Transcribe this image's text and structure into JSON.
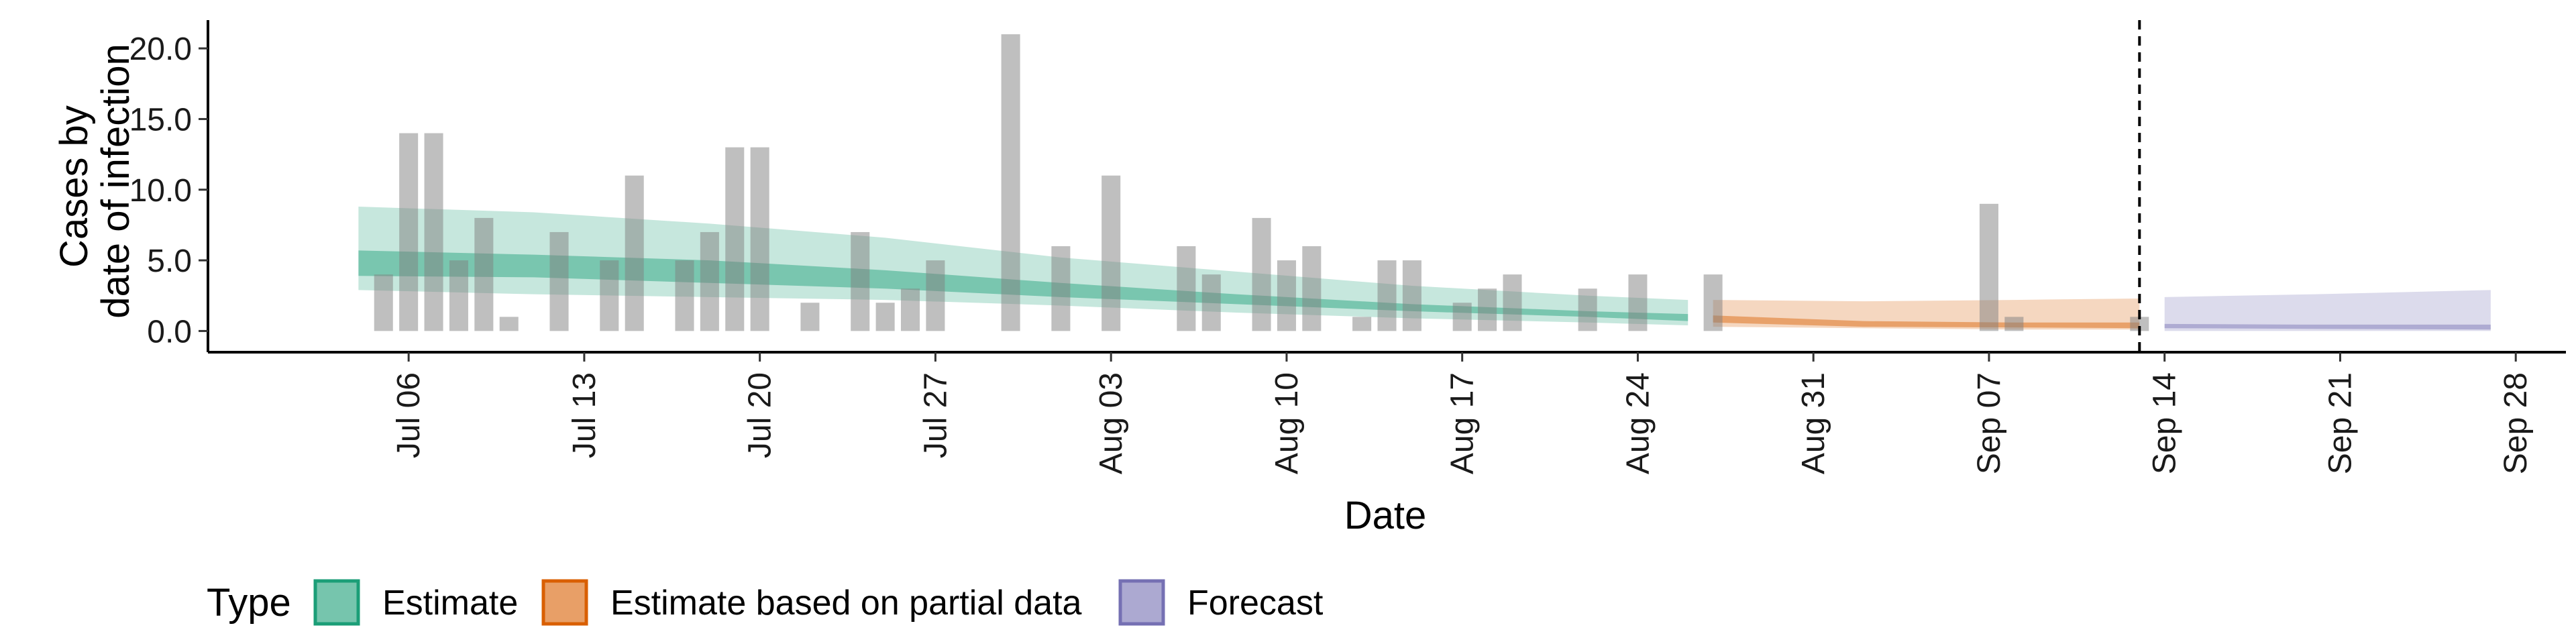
{
  "chart_data": {
    "type": "bar+area",
    "title": "",
    "xlabel": "Date",
    "ylabel_lines": [
      "Cases by",
      "date of infection"
    ],
    "ylim": [
      -1.5,
      22.0
    ],
    "yticks": [
      0,
      5,
      10,
      15,
      20
    ],
    "ytick_labels": [
      "0.0",
      "5.0",
      "10.0",
      "15.0",
      "20.0"
    ],
    "x_start": "2020-06-28",
    "x_end": "2020-09-30",
    "xticks": [
      "2020-07-06",
      "2020-07-13",
      "2020-07-20",
      "2020-07-27",
      "2020-08-03",
      "2020-08-10",
      "2020-08-17",
      "2020-08-24",
      "2020-08-31",
      "2020-09-07",
      "2020-09-14",
      "2020-09-21",
      "2020-09-28"
    ],
    "xtick_labels": [
      "Jul 06",
      "Jul 13",
      "Jul 20",
      "Jul 27",
      "Aug 03",
      "Aug 10",
      "Aug 17",
      "Aug 24",
      "Aug 31",
      "Sep 07",
      "Sep 14",
      "Sep 21",
      "Sep 28"
    ],
    "vline_date": "2020-09-13",
    "bars": {
      "dates": [
        "2020-07-05",
        "2020-07-06",
        "2020-07-07",
        "2020-07-08",
        "2020-07-09",
        "2020-07-10",
        "2020-07-11",
        "2020-07-12",
        "2020-07-13",
        "2020-07-14",
        "2020-07-15",
        "2020-07-16",
        "2020-07-17",
        "2020-07-18",
        "2020-07-19",
        "2020-07-20",
        "2020-07-21",
        "2020-07-22",
        "2020-07-23",
        "2020-07-24",
        "2020-07-25",
        "2020-07-26",
        "2020-07-27",
        "2020-07-28",
        "2020-07-29",
        "2020-07-30",
        "2020-07-31",
        "2020-08-01",
        "2020-08-02",
        "2020-08-03",
        "2020-08-04",
        "2020-08-05",
        "2020-08-06",
        "2020-08-07",
        "2020-08-08",
        "2020-08-09",
        "2020-08-10",
        "2020-08-11",
        "2020-08-12",
        "2020-08-13",
        "2020-08-14",
        "2020-08-15",
        "2020-08-16",
        "2020-08-17",
        "2020-08-18",
        "2020-08-19",
        "2020-08-20",
        "2020-08-21",
        "2020-08-22",
        "2020-08-23",
        "2020-08-24",
        "2020-08-25",
        "2020-08-26",
        "2020-08-27",
        "2020-08-28",
        "2020-08-29",
        "2020-08-30",
        "2020-08-31",
        "2020-09-01",
        "2020-09-02",
        "2020-09-03",
        "2020-09-04",
        "2020-09-05",
        "2020-09-06",
        "2020-09-07",
        "2020-09-08",
        "2020-09-09",
        "2020-09-10",
        "2020-09-11",
        "2020-09-12",
        "2020-09-13"
      ],
      "values": [
        4,
        14,
        14,
        5,
        8,
        1,
        0,
        7,
        0,
        5,
        11,
        0,
        5,
        7,
        13,
        13,
        0,
        2,
        0,
        7,
        2,
        3,
        5,
        0,
        0,
        21,
        0,
        6,
        0,
        11,
        0,
        0,
        6,
        4,
        0,
        8,
        5,
        6,
        0,
        1,
        5,
        5,
        0,
        2,
        3,
        4,
        0,
        0,
        3,
        0,
        4,
        0,
        0,
        4,
        0,
        0,
        0,
        0,
        0,
        0,
        0,
        0,
        0,
        0,
        9,
        1,
        0,
        0,
        0,
        0,
        1
      ]
    },
    "series": [
      {
        "name": "Estimate",
        "color": "#1b9e77",
        "dates": [
          "2020-07-04",
          "2020-07-11",
          "2020-07-18",
          "2020-07-25",
          "2020-08-01",
          "2020-08-08",
          "2020-08-15",
          "2020-08-22",
          "2020-08-26"
        ],
        "lower90": [
          2.9,
          2.6,
          2.4,
          2.2,
          1.8,
          1.3,
          0.9,
          0.6,
          0.4
        ],
        "lower50": [
          3.9,
          3.8,
          3.4,
          3.0,
          2.4,
          1.9,
          1.4,
          1.0,
          0.7
        ],
        "upper50": [
          5.7,
          5.4,
          5.0,
          4.3,
          3.4,
          2.6,
          1.9,
          1.4,
          1.2
        ],
        "upper90": [
          8.8,
          8.4,
          7.6,
          6.6,
          5.2,
          4.2,
          3.2,
          2.5,
          2.2
        ]
      },
      {
        "name": "Estimate based on partial data",
        "color": "#d95f02",
        "dates": [
          "2020-08-27",
          "2020-09-02",
          "2020-09-08",
          "2020-09-13"
        ],
        "lower90": [
          0.3,
          0.2,
          0.1,
          0.1
        ],
        "lower50": [
          0.6,
          0.3,
          0.25,
          0.2
        ],
        "upper50": [
          1.1,
          0.7,
          0.6,
          0.6
        ],
        "upper90": [
          2.2,
          2.1,
          2.2,
          2.3
        ]
      },
      {
        "name": "Forecast",
        "color": "#7570b3",
        "dates": [
          "2020-09-14",
          "2020-09-20",
          "2020-09-27"
        ],
        "lower90": [
          0.0,
          0.0,
          0.0
        ],
        "lower50": [
          0.2,
          0.15,
          0.1
        ],
        "upper50": [
          0.5,
          0.45,
          0.45
        ],
        "upper90": [
          2.4,
          2.6,
          2.9
        ]
      }
    ],
    "legend": {
      "title": "Type",
      "position": "bottom",
      "items": [
        "Estimate",
        "Estimate based on partial data",
        "Forecast"
      ]
    }
  }
}
